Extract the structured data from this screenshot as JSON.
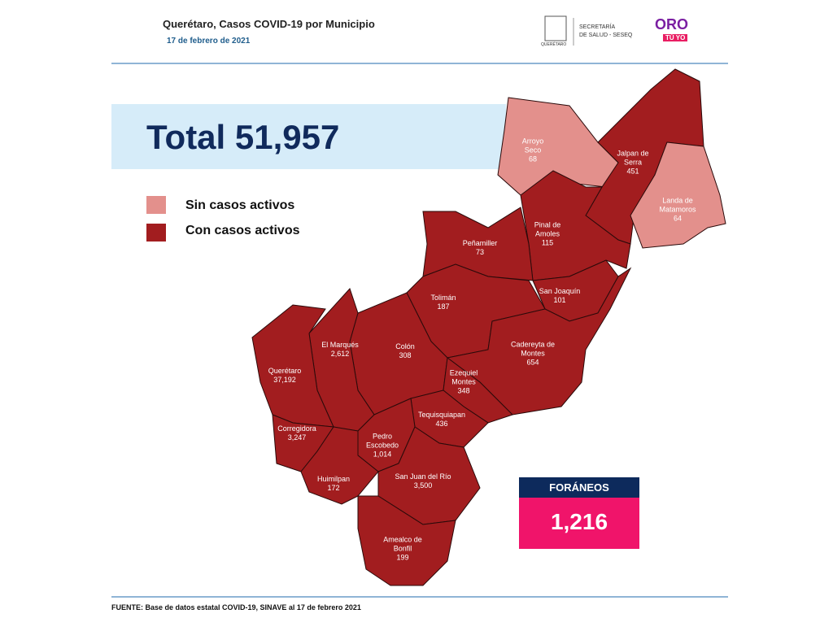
{
  "header": {
    "title": "Querétaro, Casos COVID-19 por Municipio",
    "date": "17 de febrero de 2021",
    "agency": [
      "SECRETARÍA",
      "DE SALUD - SESEQ"
    ],
    "state_logo": "QUERÉTARO",
    "brand": "ORO",
    "brand_sub": "TÚ YO"
  },
  "total": "Total 51,957",
  "legend": [
    {
      "label": "Sin casos activos",
      "color": "#e3908c"
    },
    {
      "label": "Con casos activos",
      "color": "#a21d1f"
    }
  ],
  "municipalities": [
    {
      "name": "Arroyo Seco",
      "cases": "68",
      "active": false
    },
    {
      "name": "Jalpan de Serra",
      "cases": "451",
      "active": true
    },
    {
      "name": "Landa de Matamoros",
      "cases": "64",
      "active": false
    },
    {
      "name": "Pinal de Amoles",
      "cases": "115",
      "active": true
    },
    {
      "name": "Peñamiller",
      "cases": "73",
      "active": true
    },
    {
      "name": "San Joaquín",
      "cases": "101",
      "active": true
    },
    {
      "name": "Tolimán",
      "cases": "187",
      "active": true
    },
    {
      "name": "Cadereyta de Montes",
      "cases": "654",
      "active": true
    },
    {
      "name": "Colón",
      "cases": "308",
      "active": true
    },
    {
      "name": "El Marqués",
      "cases": "2,612",
      "active": true
    },
    {
      "name": "Querétaro",
      "cases": "37,192",
      "active": true
    },
    {
      "name": "Ezequiel Montes",
      "cases": "348",
      "active": true
    },
    {
      "name": "Tequisquiapan",
      "cases": "436",
      "active": true
    },
    {
      "name": "Corregidora",
      "cases": "3,247",
      "active": true
    },
    {
      "name": "Pedro Escobedo",
      "cases": "1,014",
      "active": true
    },
    {
      "name": "Huimilpan",
      "cases": "172",
      "active": true
    },
    {
      "name": "San Juan del Río",
      "cases": "3,500",
      "active": true
    },
    {
      "name": "Amealco de Bonfil",
      "cases": "199",
      "active": true
    }
  ],
  "foraneos": {
    "label": "FORÁNEOS",
    "value": "1,216"
  },
  "source": "FUENTE:  Base de datos estatal COVID-19,  SINAVE  al 17 de febrero 2021"
}
